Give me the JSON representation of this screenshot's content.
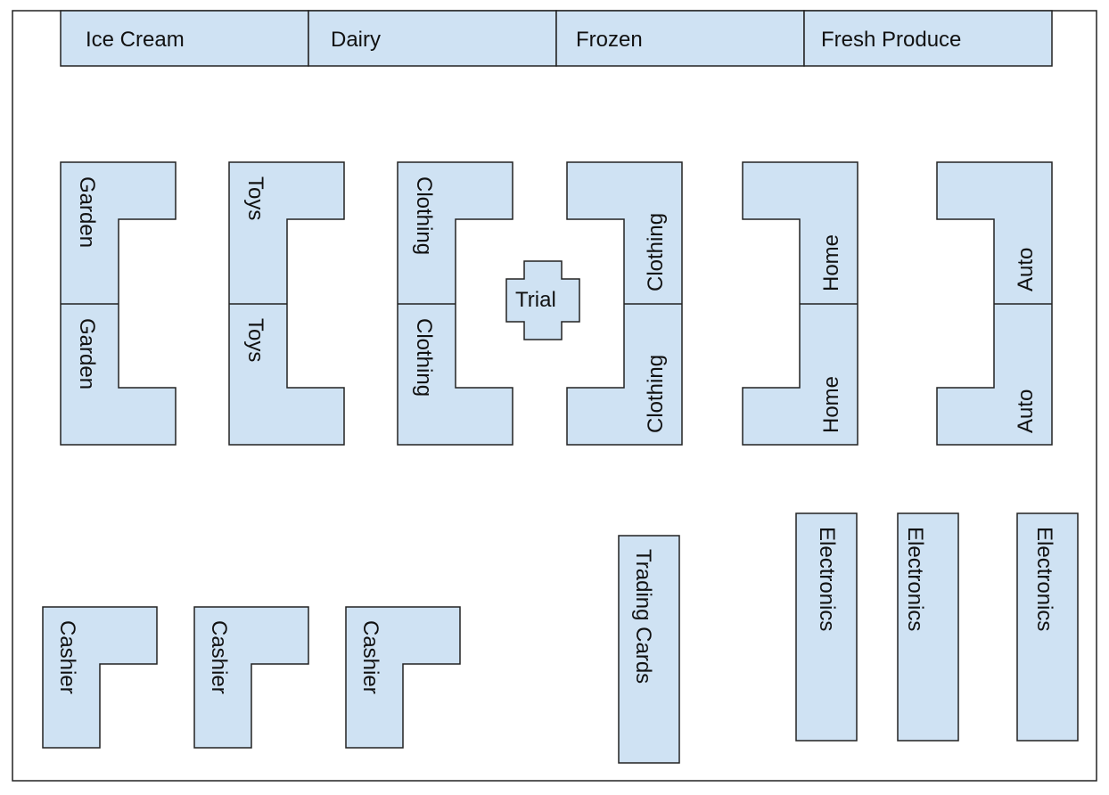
{
  "colors": {
    "fill": "#cfe2f3",
    "stroke": "#222222",
    "border": "#222222",
    "background": "#ffffff"
  },
  "top_sections": {
    "ice_cream": "Ice Cream",
    "dairy": "Dairy",
    "frozen": "Frozen",
    "fresh_produce": "Fresh Produce"
  },
  "aisles": {
    "garden": {
      "upper": "Garden",
      "lower": "Garden"
    },
    "toys": {
      "upper": "Toys",
      "lower": "Toys"
    },
    "clothing_left": {
      "upper": "Clothing",
      "lower": "Clothing"
    },
    "trial": "Trial",
    "clothing_right": {
      "upper": "Clothing",
      "lower": "Clothing"
    },
    "home": {
      "upper": "Home",
      "lower": "Home"
    },
    "auto": {
      "upper": "Auto",
      "lower": "Auto"
    }
  },
  "checkout": {
    "cashier_1": "Cashier",
    "cashier_2": "Cashier",
    "cashier_3": "Cashier"
  },
  "trading_cards": "Trading Cards",
  "electronics": {
    "e1": "Electronics",
    "e2": "Electronics",
    "e3": "Electronics"
  }
}
